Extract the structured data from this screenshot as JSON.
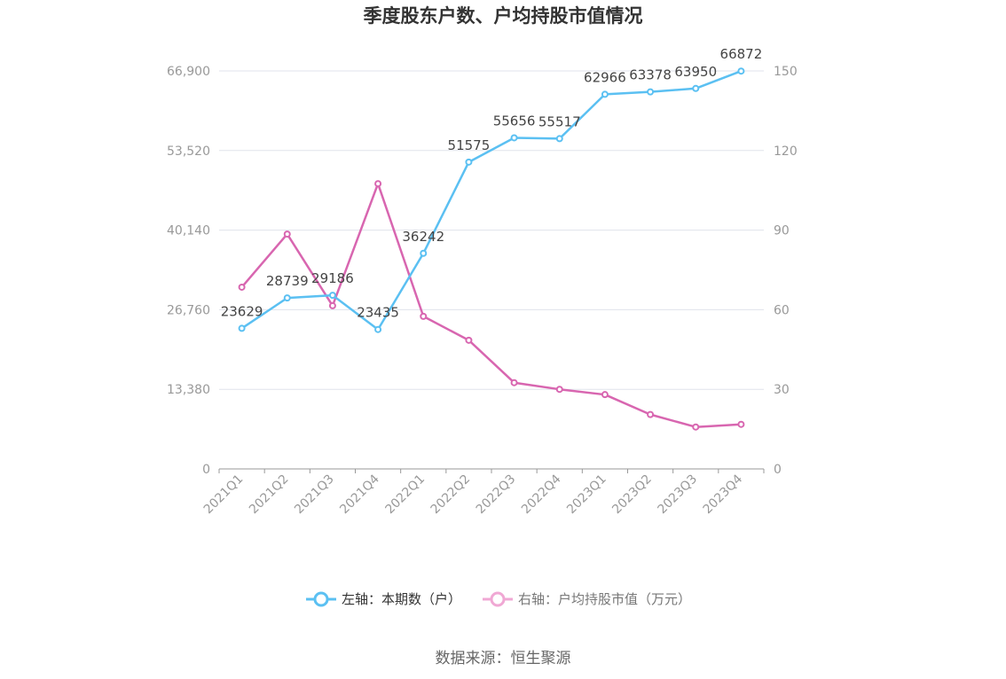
{
  "colors": {
    "left_series": "#5bc0f2",
    "right_series": "#d866b0",
    "right_series_legend": "#f0a8d4",
    "grid": "#e0e3ec",
    "axis": "#999999",
    "tick_text": "#999999"
  },
  "chart_data": {
    "type": "line",
    "title": "季度股东户数、户均持股市值情况",
    "categories": [
      "2021Q1",
      "2021Q2",
      "2021Q3",
      "2021Q4",
      "2022Q1",
      "2022Q2",
      "2022Q3",
      "2022Q4",
      "2023Q1",
      "2023Q2",
      "2023Q3",
      "2023Q4"
    ],
    "y_left": {
      "ticks": [
        "0",
        "13,380",
        "26,760",
        "40,140",
        "53,520",
        "66,900"
      ],
      "range": [
        0,
        66900
      ]
    },
    "y_right": {
      "ticks": [
        "0",
        "30",
        "60",
        "90",
        "120",
        "150"
      ],
      "range": [
        0,
        150
      ]
    },
    "grid": true,
    "legend_position": "bottom",
    "series": [
      {
        "name": "左轴：本期数（户）",
        "axis": "left",
        "values": [
          23629,
          28739,
          29186,
          23435,
          36242,
          51575,
          55656,
          55517,
          62966,
          63378,
          63950,
          66872
        ],
        "labels": [
          "23629",
          "28739",
          "29186",
          "23435",
          "36242",
          "51575",
          "55656",
          "55517",
          "62966",
          "63378",
          "63950",
          "66872"
        ]
      },
      {
        "name": "右轴：户均持股市值（万元）",
        "axis": "right",
        "values": [
          68.5,
          88.5,
          61.5,
          107.5,
          57.5,
          48.5,
          32.5,
          30.0,
          28.0,
          20.5,
          15.8,
          16.8
        ]
      }
    ]
  },
  "source": "数据来源：恒生聚源"
}
